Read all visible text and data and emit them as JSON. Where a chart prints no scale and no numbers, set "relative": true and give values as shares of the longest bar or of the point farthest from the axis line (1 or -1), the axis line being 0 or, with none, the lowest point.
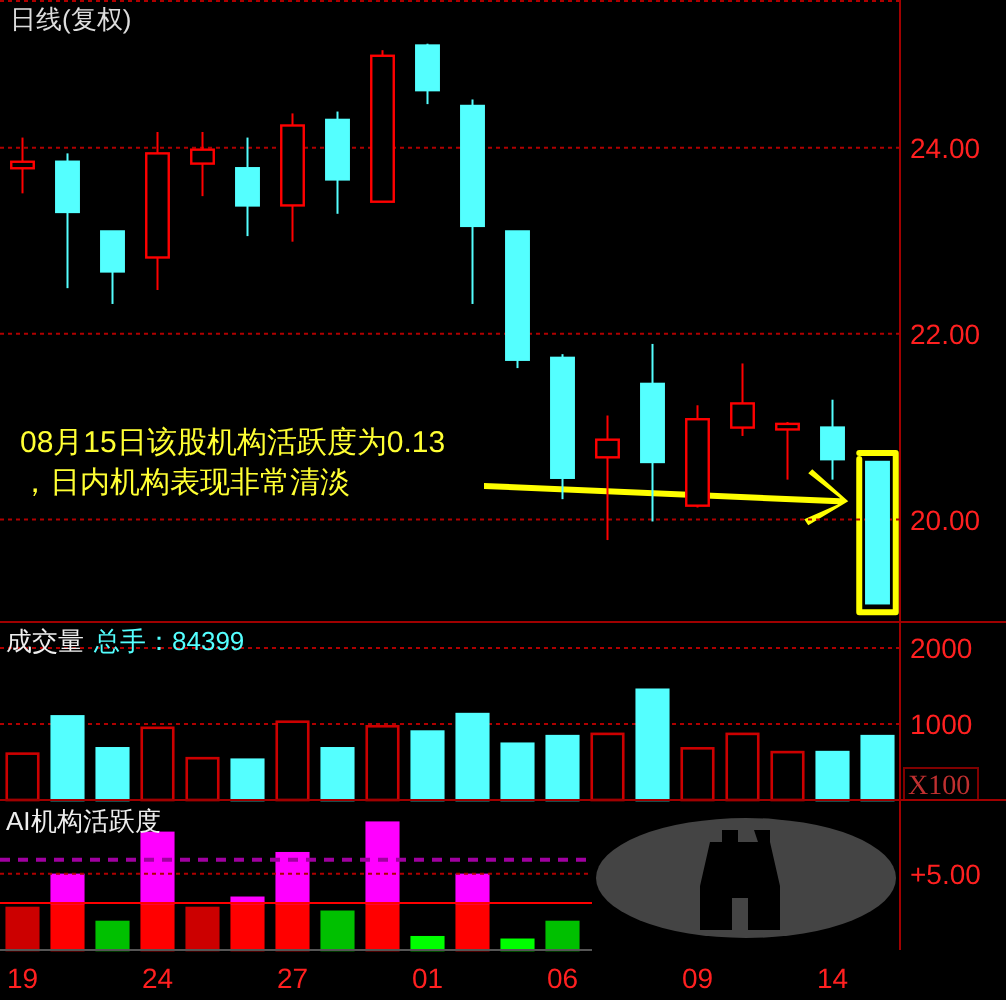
{
  "chart_data": [
    {
      "type": "candlestick",
      "title": "日线(复权)",
      "categories": [
        "19",
        null,
        null,
        "24",
        null,
        null,
        "27",
        null,
        null,
        "01",
        null,
        null,
        "06",
        null,
        null,
        "09",
        null,
        null,
        "14",
        null
      ],
      "ohlc": [
        [
          23.78,
          24.11,
          23.51,
          23.85
        ],
        [
          23.85,
          23.94,
          22.49,
          23.31
        ],
        [
          23.1,
          23.1,
          22.32,
          22.67
        ],
        [
          22.82,
          24.17,
          22.47,
          23.94
        ],
        [
          23.83,
          24.17,
          23.48,
          23.98
        ],
        [
          23.78,
          24.11,
          23.05,
          23.38
        ],
        [
          23.38,
          24.37,
          22.99,
          24.24
        ],
        [
          24.3,
          24.39,
          23.29,
          23.66
        ],
        [
          23.42,
          25.05,
          23.42,
          24.99
        ],
        [
          25.1,
          25.12,
          24.47,
          24.62
        ],
        [
          24.45,
          24.52,
          22.32,
          23.16
        ],
        [
          23.1,
          23.1,
          21.63,
          21.72
        ],
        [
          21.74,
          21.78,
          20.22,
          20.45
        ],
        [
          20.67,
          21.12,
          19.78,
          20.86
        ],
        [
          21.46,
          21.89,
          19.98,
          20.62
        ],
        [
          20.15,
          21.23,
          20.13,
          21.08
        ],
        [
          20.99,
          21.68,
          20.9,
          21.25
        ],
        [
          20.97,
          21.05,
          20.43,
          21.03
        ],
        [
          20.99,
          21.29,
          20.43,
          20.65
        ],
        [
          20.62,
          20.62,
          19.1,
          19.1
        ]
      ],
      "colors": [
        "#ff0000",
        "#54ffff",
        "#54ffff",
        "#ff0000",
        "#ff0000",
        "#54ffff",
        "#ff0000",
        "#54ffff",
        "#ff0000",
        "#54ffff",
        "#54ffff",
        "#54ffff",
        "#54ffff",
        "#ff0000",
        "#54ffff",
        "#ff0000",
        "#ff0000",
        "#ff0000",
        "#54ffff",
        "#54ffff"
      ],
      "ylim": [
        18.92,
        25.59
      ],
      "yticks": [
        {
          "value": 20,
          "label": "20.00"
        },
        {
          "value": 22,
          "label": "22.00"
        },
        {
          "value": 24,
          "label": "24.00"
        }
      ],
      "grid": "y",
      "tick_labels": "y",
      "annotations": [
        "08月15日该股机构活跃度为0.13\n，日内机构表现非常清淡"
      ]
    },
    {
      "type": "bar",
      "title": "成交量",
      "subtitle": "总手：84399",
      "categories": [
        "19",
        null,
        null,
        "24",
        null,
        null,
        "27",
        null,
        null,
        "01",
        null,
        null,
        "06",
        null,
        null,
        "09",
        null,
        null,
        "14",
        null
      ],
      "values": [
        610,
        1100,
        680,
        950,
        550,
        530,
        1030,
        680,
        970,
        900,
        1130,
        740,
        840,
        870,
        1450,
        680,
        870,
        630,
        630,
        840
      ],
      "colors": [
        "#cc0000",
        "#54ffff",
        "#54ffff",
        "#cc0000",
        "#cc0000",
        "#54ffff",
        "#cc0000",
        "#54ffff",
        "#cc0000",
        "#54ffff",
        "#54ffff",
        "#54ffff",
        "#54ffff",
        "#cc0000",
        "#54ffff",
        "#cc0000",
        "#cc0000",
        "#cc0000",
        "#54ffff",
        "#54ffff"
      ],
      "ylim": [
        0,
        2342
      ],
      "yticks": [
        1000,
        2000
      ],
      "grid": "y",
      "tick_labels": "y",
      "annotations": [
        "X100"
      ]
    },
    {
      "type": "bar",
      "title": "AI机构活跃度",
      "relative": true,
      "stacked": true,
      "categories": [
        "19",
        null,
        null,
        "24",
        null,
        null,
        "27",
        null,
        null,
        "01",
        null,
        null,
        "06",
        null,
        null,
        "09",
        null,
        null,
        "14",
        null
      ],
      "series": [
        {
          "values": [
            0.33,
            0.37,
            0.22,
            0.37,
            0.33,
            0.37,
            0.37,
            0.3,
            0.37,
            0.1,
            0.37,
            0.08,
            0.22,
            null,
            null,
            null,
            null,
            null,
            null,
            null
          ],
          "colors": [
            "#cc0000",
            "#ff0000",
            "#00c000",
            "#ff0000",
            "#cc0000",
            "#ff0000",
            "#ff0000",
            "#00c000",
            "#ff0000",
            "#00ff00",
            "#ff0000",
            "#00ff00",
            "#00c000",
            null,
            null,
            null,
            null,
            null,
            null,
            null
          ]
        },
        {
          "color": "#ff00ff",
          "values": [
            null,
            0.22,
            null,
            0.55,
            null,
            0.04,
            0.39,
            null,
            0.63,
            null,
            0.22,
            null,
            null,
            null,
            null,
            null,
            null,
            null,
            null,
            null
          ]
        }
      ],
      "ref_lines": [
        {
          "axis": "y",
          "value": 0.6,
          "color": "#b00000",
          "line_style": "dotted"
        },
        {
          "axis": "y",
          "value": 0.37,
          "color": "#ff0000",
          "line_style": "solid"
        },
        {
          "axis": "y",
          "value": 0.71,
          "color": "#a000a0",
          "line_style": "dashed"
        }
      ],
      "tick_labels": "x",
      "annotations": [
        "+5.00"
      ]
    }
  ]
}
